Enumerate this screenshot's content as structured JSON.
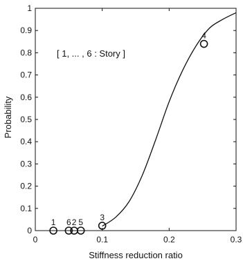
{
  "chart_data": {
    "type": "line",
    "title": "",
    "xlabel": "Stiffness reduction ratio",
    "ylabel": "Probability",
    "xlim": [
      0,
      0.3
    ],
    "ylim": [
      0,
      1
    ],
    "x_ticks": [
      "0",
      "0.1",
      "0.2",
      "0.3"
    ],
    "y_ticks": [
      "0",
      "0.1",
      "0.2",
      "0.3",
      "0.4",
      "0.5",
      "0.6",
      "0.7",
      "0.8",
      "0.9",
      "1"
    ],
    "grid": false,
    "annotation": "[ 1, ... , 6 : Story ]",
    "curve": {
      "x": [
        0.1,
        0.12,
        0.14,
        0.16,
        0.18,
        0.2,
        0.22,
        0.24,
        0.26,
        0.28,
        0.3
      ],
      "y": [
        0.02,
        0.06,
        0.13,
        0.25,
        0.41,
        0.58,
        0.72,
        0.83,
        0.91,
        0.95,
        0.98
      ]
    },
    "points": [
      {
        "label": "1",
        "x": 0.027,
        "y": 0.0
      },
      {
        "label": "6",
        "x": 0.05,
        "y": 0.0
      },
      {
        "label": "2",
        "x": 0.058,
        "y": 0.0
      },
      {
        "label": "5",
        "x": 0.068,
        "y": 0.0
      },
      {
        "label": "3",
        "x": 0.1,
        "y": 0.022
      },
      {
        "label": "4",
        "x": 0.252,
        "y": 0.84
      }
    ]
  }
}
